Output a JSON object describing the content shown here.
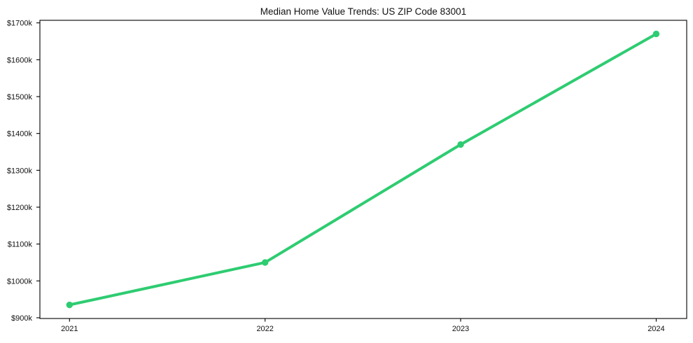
{
  "chart_data": {
    "type": "line",
    "title": "Median Home Value Trends: US ZIP Code 83001",
    "categories": [
      "2021",
      "2022",
      "2023",
      "2024"
    ],
    "values": [
      935,
      1050,
      1370,
      1670
    ],
    "values_unit": "$k",
    "xlabel": "",
    "ylabel": "",
    "y_tick_values": [
      900,
      1000,
      1100,
      1200,
      1300,
      1400,
      1500,
      1600,
      1700
    ],
    "y_tick_labels": [
      "$900k",
      "$1000k",
      "$1100k",
      "$1200k",
      "$1300k",
      "$1400k",
      "$1500k",
      "$1600k",
      "$1700k"
    ],
    "ylim": [
      898,
      1707
    ],
    "grid": false,
    "legend": null,
    "line_color": "#2ecc71",
    "axis_color": "#000000",
    "background_color": "#ffffff"
  }
}
